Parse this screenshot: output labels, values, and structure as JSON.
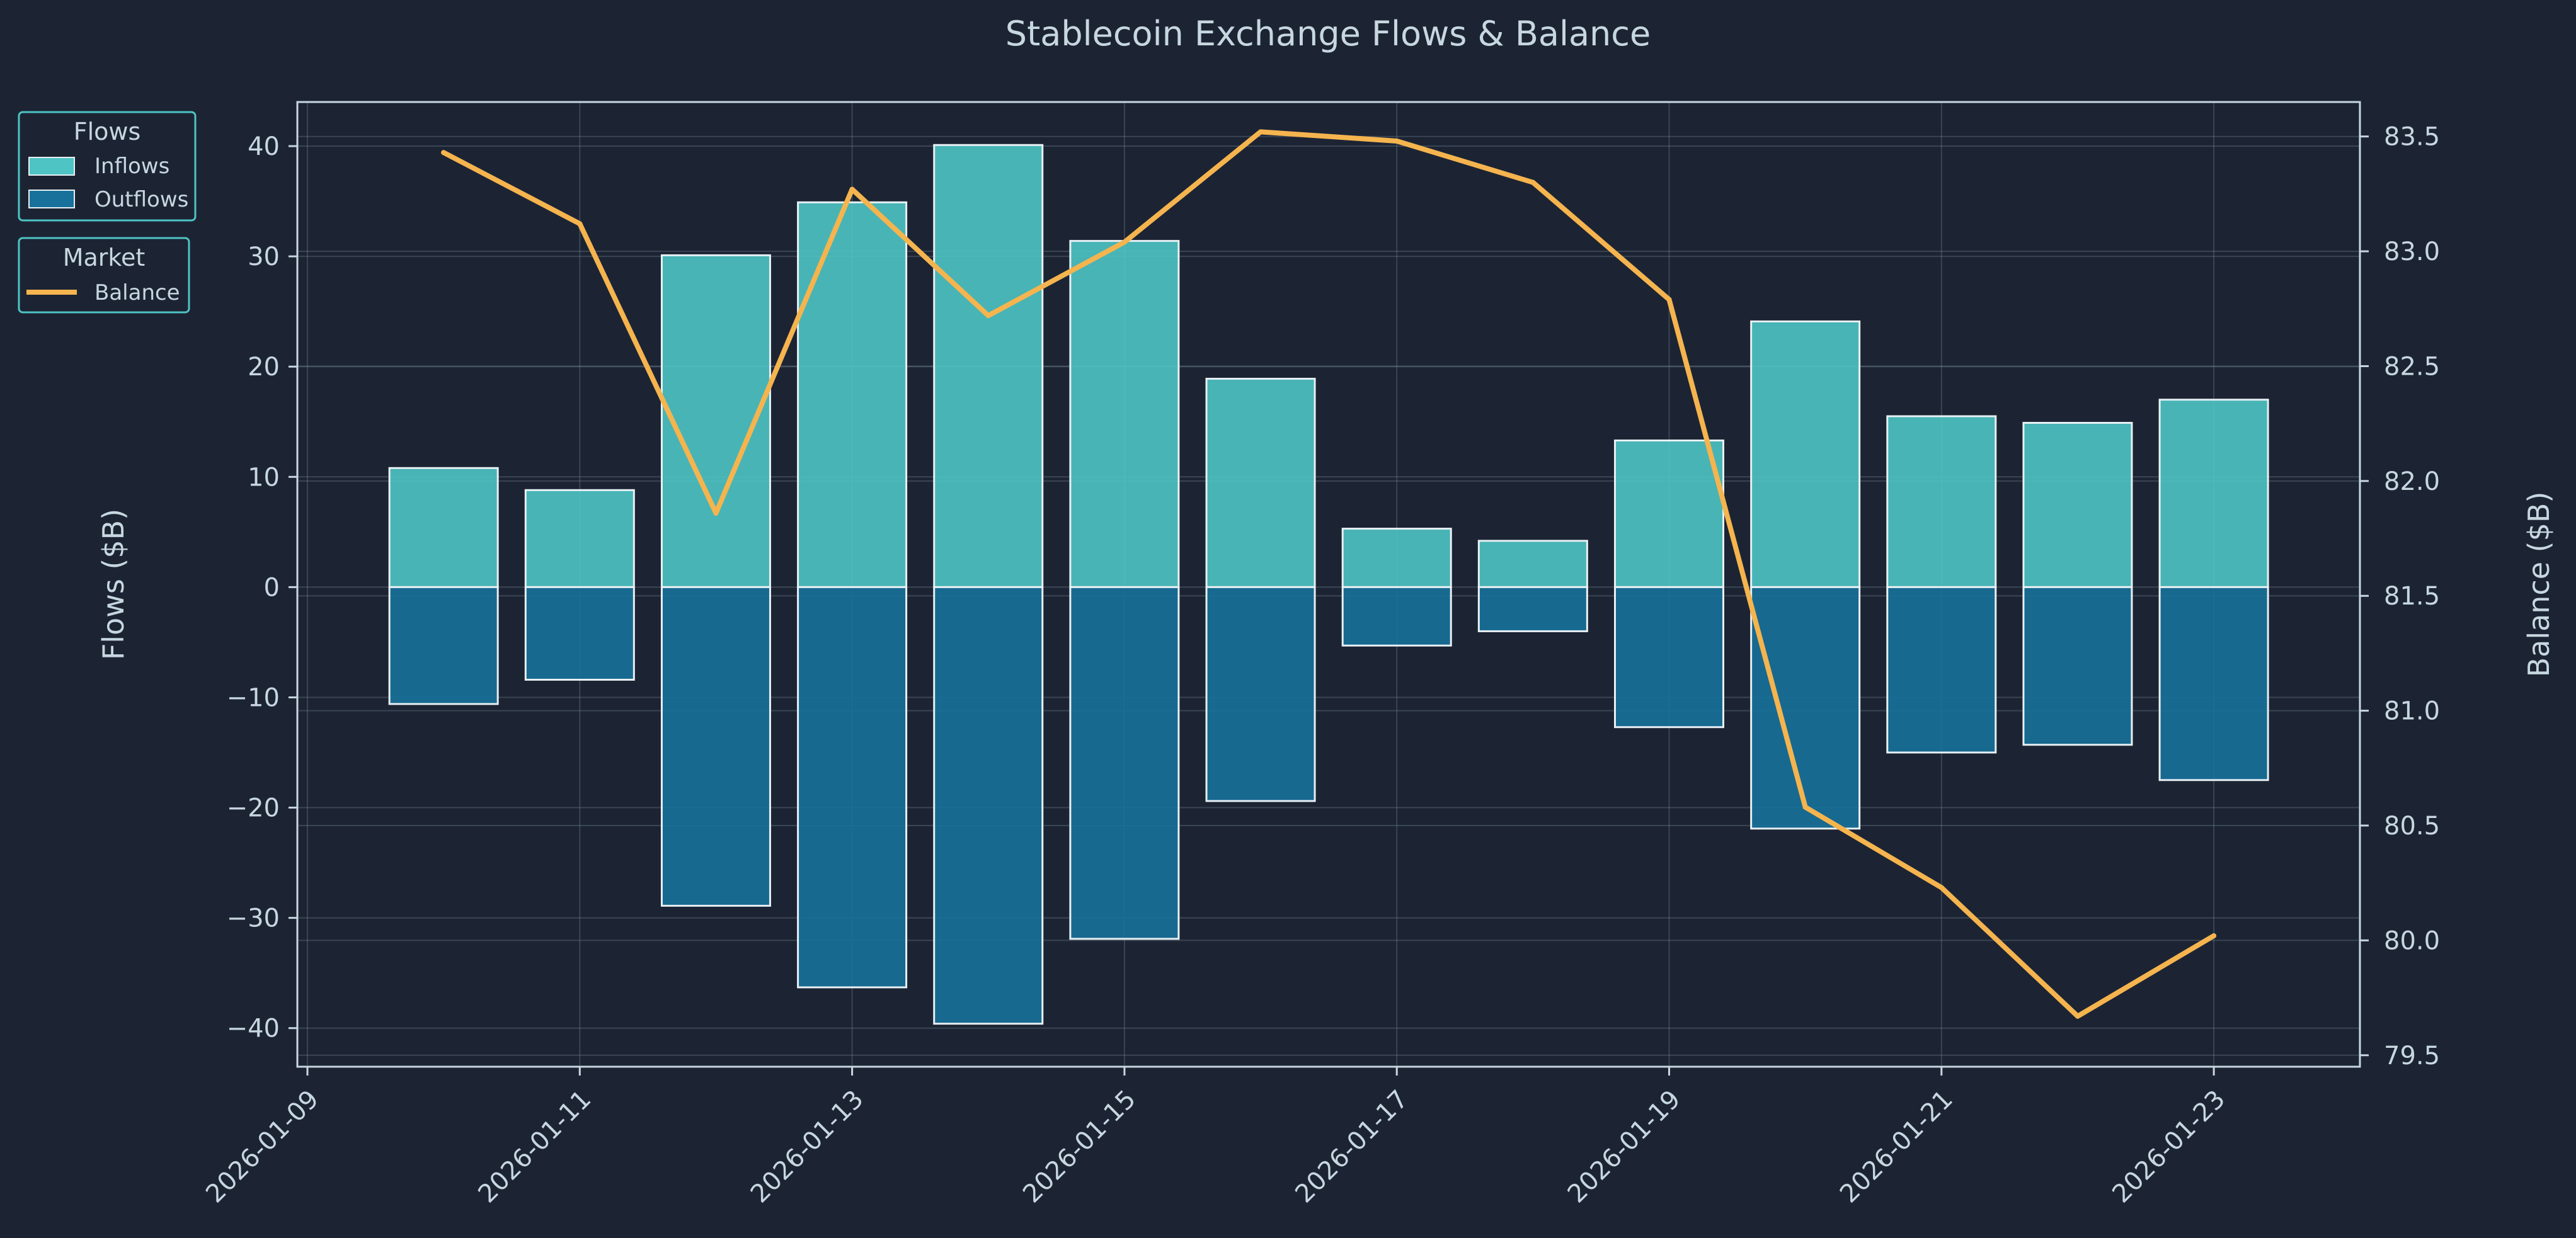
{
  "chart_data": {
    "type": "bar+line",
    "title": "Stablecoin Exchange Flows & Balance",
    "ylabel": "Flows ($B)",
    "y2label": "Balance ($B)",
    "ylim": [
      -43.5,
      44
    ],
    "y2lim": [
      79.45,
      83.65
    ],
    "yticks": [
      -40,
      -30,
      -20,
      -10,
      0,
      10,
      20,
      30,
      40
    ],
    "y2ticks": [
      "79.5",
      "80.0",
      "80.5",
      "81.0",
      "81.5",
      "82.0",
      "82.5",
      "83.0",
      "83.5"
    ],
    "xticks": [
      "2026-01-09",
      "2026-01-11",
      "2026-01-13",
      "2026-01-15",
      "2026-01-17",
      "2026-01-19",
      "2026-01-21",
      "2026-01-23"
    ],
    "dates": [
      "2026-01-10",
      "2026-01-11",
      "2026-01-12",
      "2026-01-13",
      "2026-01-14",
      "2026-01-15",
      "2026-01-16",
      "2026-01-17",
      "2026-01-18",
      "2026-01-19",
      "2026-01-20",
      "2026-01-21",
      "2026-01-22",
      "2026-01-23"
    ],
    "series": [
      {
        "name": "Inflows",
        "group": "Flows",
        "kind": "bar",
        "color": "#4ec4c4",
        "values": [
          10.8,
          8.8,
          30.1,
          34.9,
          40.1,
          31.4,
          18.9,
          5.3,
          4.2,
          13.3,
          24.1,
          15.5,
          14.9,
          17.0
        ]
      },
      {
        "name": "Outflows",
        "group": "Flows",
        "kind": "bar",
        "color": "#17719a",
        "values": [
          -10.6,
          -8.4,
          -28.9,
          -36.3,
          -39.6,
          -31.9,
          -19.4,
          -5.3,
          -4.0,
          -12.7,
          -21.9,
          -15.0,
          -14.3,
          -17.5
        ]
      },
      {
        "name": "Balance",
        "group": "Market",
        "kind": "line",
        "axis": "right",
        "color": "#f5b44e",
        "values": [
          83.43,
          83.12,
          81.86,
          83.27,
          82.72,
          83.04,
          83.52,
          83.48,
          83.3,
          82.79,
          80.58,
          80.23,
          79.67,
          80.02
        ]
      }
    ],
    "legends": [
      {
        "title": "Flows",
        "entries": [
          "Inflows",
          "Outflows"
        ]
      },
      {
        "title": "Market",
        "entries": [
          "Balance"
        ]
      }
    ],
    "grid": true,
    "legend_position": "outside-top-left"
  }
}
